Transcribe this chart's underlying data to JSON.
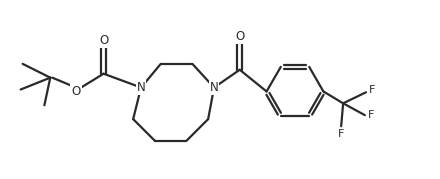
{
  "bg_color": "#ffffff",
  "line_color": "#2a2a2a",
  "line_width": 1.6,
  "font_size": 8.5,
  "fig_width": 4.4,
  "fig_height": 1.79,
  "dpi": 100,
  "xlim": [
    0,
    11
  ],
  "ylim": [
    0,
    4.5
  ]
}
